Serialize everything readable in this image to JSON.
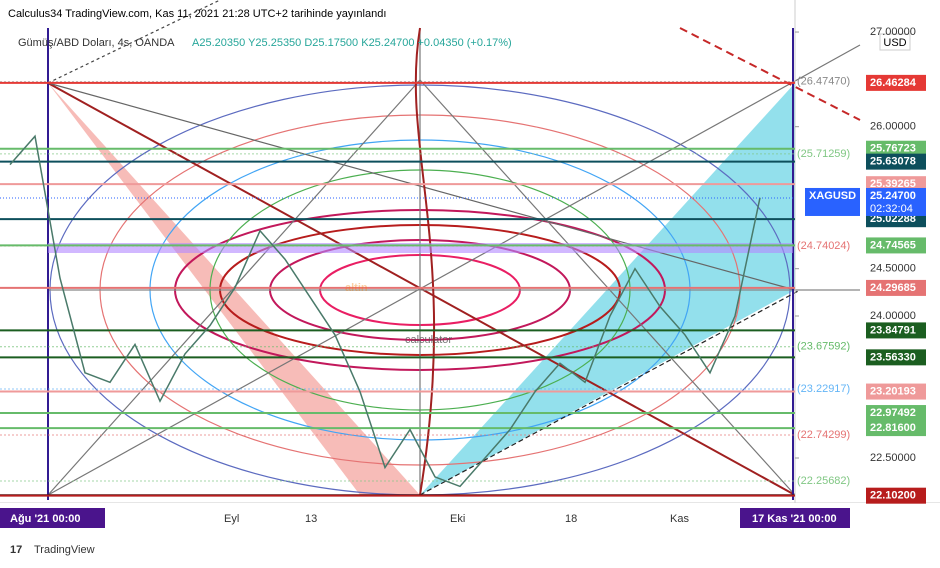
{
  "header": {
    "title": "Calculus34 TradingView.com, Kas 11, 2021 21:28 UTC+2 tarihinde yayınlandı"
  },
  "legend": {
    "symbol": "Gümüş/ABD Doları, 4s, OANDA",
    "ohlc": "A25.20350  Y25.25350  D25.17500  K25.24700  +0.04350 (+0.17%)"
  },
  "chart_data": {
    "type": "line",
    "currency": "USD",
    "color": "#4a7a6a",
    "ylim": [
      22.05,
      27.05
    ],
    "yticks": [
      {
        "value": 27,
        "label": "27.00000"
      },
      {
        "value": 26,
        "label": "26.00000"
      },
      {
        "value": 24.5,
        "label": "24.50000"
      },
      {
        "value": 24,
        "label": "24.00000"
      },
      {
        "value": 22.5,
        "label": "22.50000"
      }
    ],
    "values": [
      25.6,
      25.9,
      24.4,
      23.4,
      23.3,
      23.7,
      23.1,
      23.6,
      23.9,
      24.3,
      24.9,
      24.6,
      24.2,
      23.8,
      23.2,
      22.4,
      22.8,
      22.3,
      22.2,
      22.5,
      22.8,
      23.2,
      23.5,
      23.3,
      24.0,
      24.5,
      24.1,
      23.8,
      23.4,
      24.0,
      25.25
    ]
  },
  "price_levels": [
    {
      "value": 26.46284,
      "label": "26.46284",
      "color": "#e53935"
    },
    {
      "value": 25.76723,
      "label": "25.76723",
      "color": "#66bb6a"
    },
    {
      "value": 25.63078,
      "label": "25.63078",
      "color": "#0d4f5c"
    },
    {
      "value": 25.39265,
      "label": "25.39265",
      "color": "#ef9a9a"
    },
    {
      "value": 25.02288,
      "label": "25.02288",
      "color": "#0d4f5c"
    },
    {
      "value": 24.74565,
      "label": "24.74565",
      "color": "#66bb6a"
    },
    {
      "value": 24.29685,
      "label": "24.29685",
      "color": "#e57373"
    },
    {
      "value": 23.84791,
      "label": "23.84791",
      "color": "#1b5e20"
    },
    {
      "value": 23.5633,
      "label": "23.56330",
      "color": "#1b5e20"
    },
    {
      "value": 23.20193,
      "label": "23.20193",
      "color": "#ef9a9a"
    },
    {
      "value": 22.97492,
      "label": "22.97492",
      "color": "#66bb6a"
    },
    {
      "value": 22.816,
      "label": "22.81600",
      "color": "#66bb6a"
    },
    {
      "value": 22.102,
      "label": "22.10200",
      "color": "#b71c1c"
    }
  ],
  "faded_levels": [
    {
      "value": 26.4747,
      "label": "(26.47470)",
      "color": "#888888"
    },
    {
      "value": 25.71259,
      "label": "(25.71259)",
      "color": "#81c784"
    },
    {
      "value": 24.74024,
      "label": "(24.74024)",
      "color": "#e57373"
    },
    {
      "value": 23.67592,
      "label": "(23.67592)",
      "color": "#66bb6a"
    },
    {
      "value": 23.22917,
      "label": "(23.22917)",
      "color": "#64b5f6"
    },
    {
      "value": 22.74299,
      "label": "(22.74299)",
      "color": "#e57373"
    },
    {
      "value": 22.25682,
      "label": "(22.25682)",
      "color": "#81c784"
    }
  ],
  "current_price": {
    "symbol": "XAGUSD",
    "value": 25.247,
    "label": "25.24700",
    "countdown": "02:32:04",
    "color": "#2962ff"
  },
  "time_labels": [
    "Ağu '21   00:00",
    "Eyl",
    "13",
    "Eki",
    "18",
    "Kas",
    "17 Kas '21   00:00"
  ],
  "watermark": [
    "altin",
    "calculator"
  ],
  "footer": "TradingView"
}
